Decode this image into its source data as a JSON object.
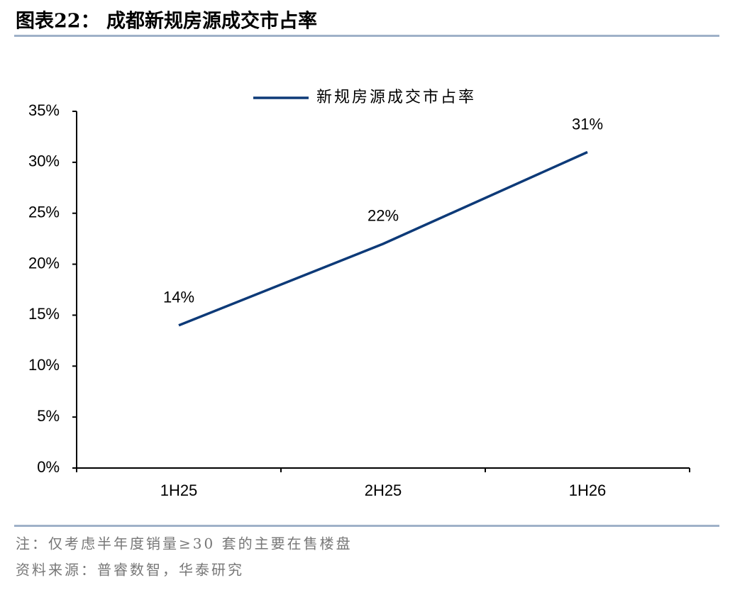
{
  "chart_data": {
    "type": "line",
    "title": "图表22：  成都新规房源成交市占率",
    "categories": [
      "1H25",
      "2H25",
      "1H26"
    ],
    "series": [
      {
        "name": "新规房源成交市占率",
        "color": "#0d3a78",
        "values": [
          14,
          22,
          31
        ],
        "value_labels": [
          "14%",
          "22%",
          "31%"
        ]
      }
    ],
    "ylim": [
      0,
      35
    ],
    "yticks": [
      {
        "value": 0,
        "label": "0%"
      },
      {
        "value": 5,
        "label": "5%"
      },
      {
        "value": 10,
        "label": "10%"
      },
      {
        "value": 15,
        "label": "15%"
      },
      {
        "value": 20,
        "label": "20%"
      },
      {
        "value": 25,
        "label": "25%"
      },
      {
        "value": 30,
        "label": "30%"
      },
      {
        "value": 35,
        "label": "35%"
      }
    ],
    "grid": false,
    "legend": "top",
    "note": "注：仅考虑半年度销量≥30 套的主要在售楼盘",
    "source": "资料来源：普睿数智，华泰研究"
  }
}
